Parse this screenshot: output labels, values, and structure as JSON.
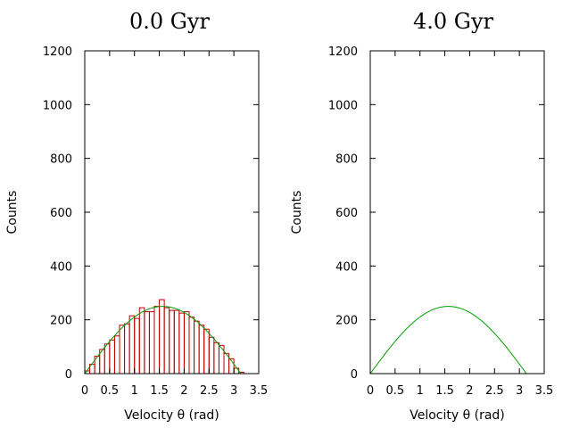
{
  "chart_data": [
    {
      "type": "bar",
      "title": "0.0 Gyr",
      "xlabel": "Velocity  θ (rad)",
      "ylabel": "Counts",
      "xlim": [
        0,
        3.5
      ],
      "ylim": [
        0,
        1200
      ],
      "xticks": [
        "0",
        "0.5",
        "1",
        "1.5",
        "2",
        "2.5",
        "3",
        "3.5"
      ],
      "yticks": [
        "0",
        "200",
        "400",
        "600",
        "800",
        "1000",
        "1200"
      ],
      "grid": false,
      "bin_width": 0.1,
      "bin_starts": [
        0.0,
        0.1,
        0.2,
        0.3,
        0.4,
        0.5,
        0.6,
        0.7,
        0.8,
        0.9,
        1.0,
        1.1,
        1.2,
        1.3,
        1.4,
        1.5,
        1.6,
        1.7,
        1.8,
        1.9,
        2.0,
        2.1,
        2.2,
        2.3,
        2.4,
        2.5,
        2.6,
        2.7,
        2.8,
        2.9,
        3.0,
        3.1
      ],
      "values": [
        10,
        35,
        65,
        90,
        110,
        125,
        140,
        180,
        185,
        215,
        205,
        245,
        230,
        230,
        250,
        275,
        245,
        235,
        235,
        225,
        230,
        210,
        195,
        180,
        165,
        135,
        115,
        105,
        75,
        55,
        20,
        5
      ],
      "bar_color": "#bb0000",
      "curve": {
        "function": "250*sin(theta)",
        "amplitude": 250,
        "domain": [
          0,
          3.14159
        ],
        "color": "#00a000"
      }
    },
    {
      "type": "line",
      "title": "4.0 Gyr",
      "xlabel": "Velocity  θ (rad)",
      "ylabel": "Counts",
      "xlim": [
        0,
        3.5
      ],
      "ylim": [
        0,
        1200
      ],
      "xticks": [
        "0",
        "0.5",
        "1",
        "1.5",
        "2",
        "2.5",
        "3",
        "3.5"
      ],
      "yticks": [
        "0",
        "200",
        "400",
        "600",
        "800",
        "1000",
        "1200"
      ],
      "grid": false,
      "curve": {
        "function": "250*sin(theta)",
        "amplitude": 250,
        "domain": [
          0,
          3.14159
        ],
        "color": "#00a000"
      }
    }
  ]
}
